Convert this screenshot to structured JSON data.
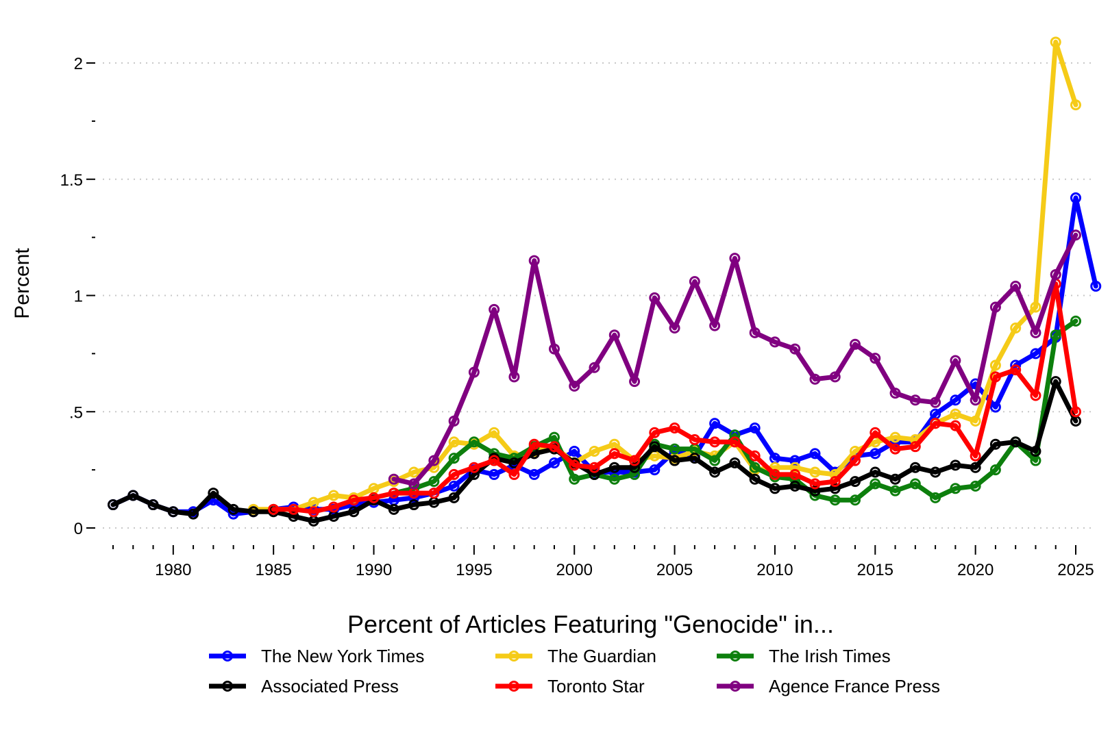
{
  "chart_data": {
    "type": "line",
    "ylabel": "Percent",
    "legend_title": "Percent of Articles Featuring \"Genocide\" in...",
    "legend_position": "bottom",
    "x_range": [
      1977,
      2025
    ],
    "ylim": [
      0,
      2.1
    ],
    "y_ticks": [
      {
        "value": 0,
        "label": "0"
      },
      {
        "value": 0.5,
        "label": ".5"
      },
      {
        "value": 1,
        "label": "1"
      },
      {
        "value": 1.5,
        "label": "1.5"
      },
      {
        "value": 2,
        "label": "2"
      }
    ],
    "y_minor_ticks": [
      0.25,
      0.75,
      1.25,
      1.75
    ],
    "x_ticks": [
      1980,
      1985,
      1990,
      1995,
      2000,
      2005,
      2010,
      2015,
      2020,
      2025
    ],
    "x_tick_labels": [
      "1980",
      "1985",
      "1990",
      "1995",
      "2000",
      "2005",
      "2010",
      "2015",
      "2020",
      "2025"
    ],
    "grid": "horizontal dotted at major y ticks",
    "series": [
      {
        "name": "The New York Times",
        "color": "#0000ff",
        "start": 1977,
        "values": [
          0.1,
          0.14,
          0.1,
          0.07,
          0.07,
          0.12,
          0.06,
          0.07,
          0.08,
          0.09,
          0.08,
          0.08,
          0.1,
          0.11,
          0.12,
          0.13,
          0.15,
          0.18,
          0.25,
          0.23,
          0.27,
          0.23,
          0.28,
          0.33,
          0.24,
          0.24,
          0.24,
          0.25,
          0.33,
          0.31,
          0.45,
          0.4,
          0.43,
          0.3,
          0.29,
          0.32,
          0.24,
          0.31,
          0.32,
          0.37,
          0.37,
          0.49,
          0.55,
          0.62,
          0.52,
          0.7,
          0.75,
          0.82,
          1.42,
          1.04
        ]
      },
      {
        "name": "The Guardian",
        "color": "#f5cb18",
        "start": 1984,
        "values": [
          0.08,
          0.08,
          0.08,
          0.11,
          0.14,
          0.13,
          0.17,
          0.2,
          0.24,
          0.26,
          0.37,
          0.36,
          0.41,
          0.31,
          0.33,
          0.35,
          0.28,
          0.33,
          0.36,
          0.29,
          0.31,
          0.3,
          0.33,
          0.31,
          0.37,
          0.25,
          0.26,
          0.26,
          0.24,
          0.23,
          0.33,
          0.37,
          0.39,
          0.38,
          0.45,
          0.49,
          0.46,
          0.7,
          0.86,
          0.95,
          2.09,
          1.82
        ]
      },
      {
        "name": "The Irish Times",
        "color": "#0d7f0d",
        "start": 1991,
        "values": [
          0.15,
          0.17,
          0.2,
          0.3,
          0.37,
          0.32,
          0.3,
          0.35,
          0.39,
          0.21,
          0.23,
          0.21,
          0.23,
          0.36,
          0.34,
          0.34,
          0.29,
          0.4,
          0.26,
          0.22,
          0.21,
          0.14,
          0.12,
          0.12,
          0.19,
          0.16,
          0.19,
          0.13,
          0.17,
          0.18,
          0.25,
          0.37,
          0.29,
          0.83,
          0.89
        ]
      },
      {
        "name": "Associated Press",
        "color": "#000000",
        "start": 1977,
        "values": [
          0.1,
          0.14,
          0.1,
          0.07,
          0.06,
          0.15,
          0.08,
          0.07,
          0.07,
          0.05,
          0.03,
          0.05,
          0.07,
          0.12,
          0.08,
          0.1,
          0.11,
          0.13,
          0.23,
          0.3,
          0.28,
          0.32,
          0.34,
          0.28,
          0.23,
          0.26,
          0.26,
          0.35,
          0.29,
          0.3,
          0.24,
          0.28,
          0.21,
          0.17,
          0.18,
          0.16,
          0.17,
          0.2,
          0.24,
          0.21,
          0.26,
          0.24,
          0.27,
          0.26,
          0.36,
          0.37,
          0.33,
          0.63,
          0.46
        ]
      },
      {
        "name": "Toronto Star",
        "color": "#ff0000",
        "start": 1985,
        "values": [
          0.08,
          0.08,
          0.07,
          0.09,
          0.12,
          0.13,
          0.15,
          0.15,
          0.15,
          0.23,
          0.26,
          0.29,
          0.23,
          0.36,
          0.35,
          0.27,
          0.26,
          0.32,
          0.29,
          0.41,
          0.43,
          0.38,
          0.37,
          0.37,
          0.31,
          0.23,
          0.23,
          0.19,
          0.2,
          0.29,
          0.41,
          0.34,
          0.35,
          0.45,
          0.44,
          0.31,
          0.65,
          0.68,
          0.57,
          1.05,
          0.5
        ]
      },
      {
        "name": "Agence France Press",
        "color": "#800080",
        "start": 1991,
        "values": [
          0.21,
          0.19,
          0.29,
          0.46,
          0.67,
          0.94,
          0.65,
          1.15,
          0.77,
          0.61,
          0.69,
          0.83,
          0.63,
          0.99,
          0.86,
          1.06,
          0.87,
          1.16,
          0.84,
          0.8,
          0.77,
          0.64,
          0.65,
          0.79,
          0.73,
          0.58,
          0.55,
          0.54,
          0.72,
          0.55,
          0.95,
          1.04,
          0.84,
          1.09,
          1.26
        ]
      }
    ],
    "legend_order": [
      0,
      1,
      2,
      3,
      4,
      5
    ]
  }
}
